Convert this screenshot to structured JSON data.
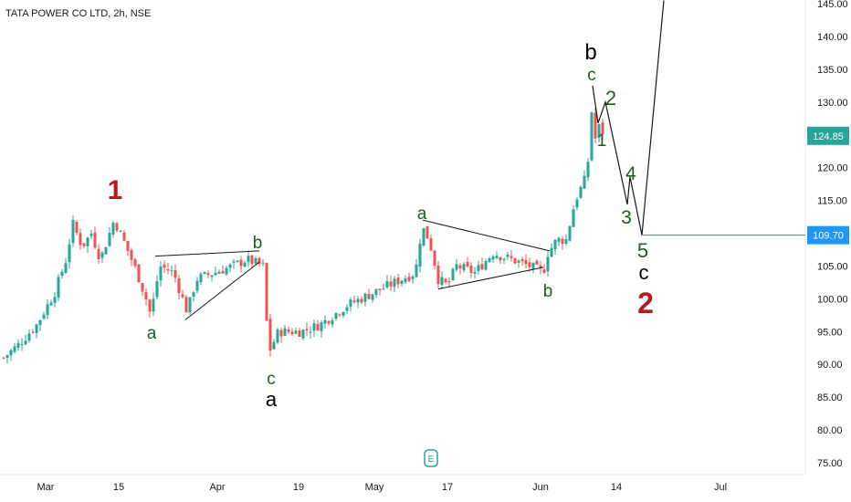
{
  "header": {
    "title": "TATA POWER CO LTD, 2h, NSE"
  },
  "price_axis": {
    "ticks": [
      "145.00",
      "140.00",
      "135.00",
      "130.00",
      "125.00",
      "120.00",
      "115.00",
      "110.00",
      "105.00",
      "100.00",
      "95.00",
      "90.00",
      "85.00",
      "80.00",
      "75.00"
    ],
    "last_price_label": "124.85",
    "target_label": "109.70"
  },
  "time_axis": {
    "ticks": [
      "Mar",
      "15",
      "Apr",
      "19",
      "May",
      "17",
      "Jun",
      "14",
      "Jul"
    ]
  },
  "event_marker": "E",
  "colors": {
    "up": "#26a69a",
    "down": "#ef5350",
    "line": "#131722",
    "target": "#2196f3",
    "label_green": "#1b5e20",
    "label_red": "#b71c1c",
    "label_black": "#000000"
  },
  "chart_data": {
    "type": "candlestick",
    "title": "TATA POWER CO LTD, 2h, NSE",
    "ylim": [
      73,
      145
    ],
    "last_price": 124.85,
    "target_level": 109.7,
    "wave_labels": [
      {
        "text": "1",
        "color": "red"
      },
      {
        "text": "a",
        "color": "green"
      },
      {
        "text": "b",
        "color": "green"
      },
      {
        "text": "c",
        "color": "green"
      },
      {
        "text": "a",
        "color": "black"
      },
      {
        "text": "a",
        "color": "green"
      },
      {
        "text": "b",
        "color": "green"
      },
      {
        "text": "b",
        "color": "black"
      },
      {
        "text": "c",
        "color": "green"
      },
      {
        "text": "1",
        "color": "green"
      },
      {
        "text": "2",
        "color": "green"
      },
      {
        "text": "3",
        "color": "green"
      },
      {
        "text": "4",
        "color": "green"
      },
      {
        "text": "5",
        "color": "green"
      },
      {
        "text": "c",
        "color": "black"
      },
      {
        "text": "2",
        "color": "red"
      }
    ]
  }
}
